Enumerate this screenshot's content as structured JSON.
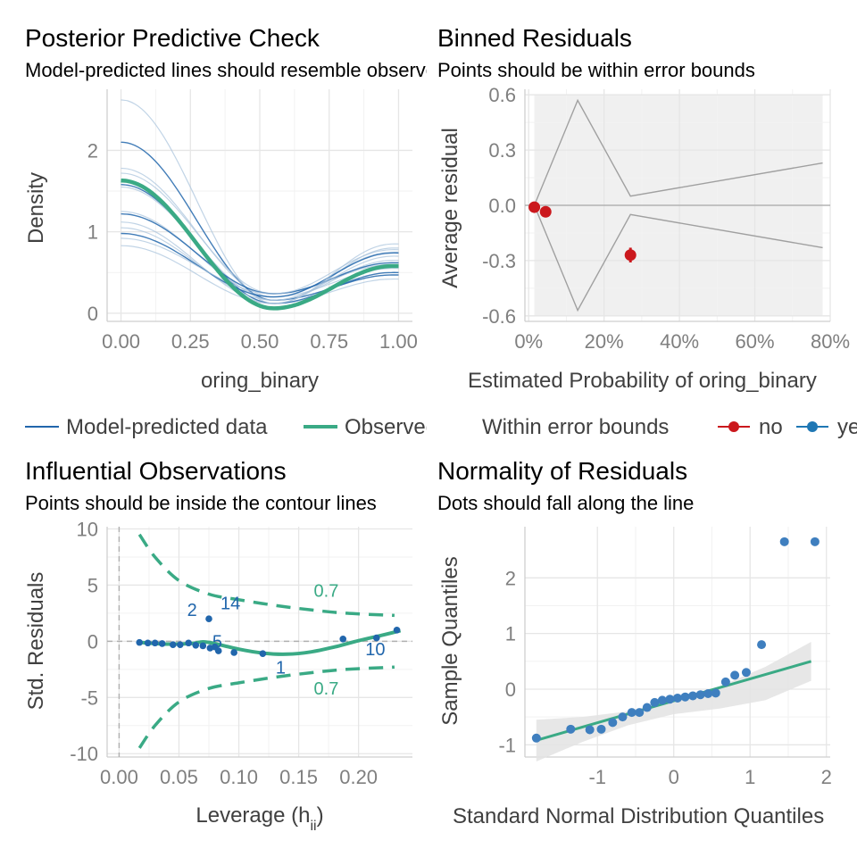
{
  "chart_data": [
    {
      "id": "ppc",
      "type": "line",
      "title": "Posterior Predictive Check",
      "subtitle": "Model-predicted lines should resemble observed data line",
      "xlabel": "oring_binary",
      "ylabel": "Density",
      "xlim": [
        -0.05,
        1.05
      ],
      "ylim": [
        -0.1,
        2.75
      ],
      "xticks": [
        0,
        0.25,
        0.5,
        0.75,
        1
      ],
      "xtick_labels": [
        "0.00",
        "0.25",
        "0.50",
        "0.75",
        "1.00"
      ],
      "yticks": [
        0,
        1,
        2
      ],
      "ytick_labels": [
        "0",
        "1",
        "2"
      ],
      "legend": [
        "Model-predicted data",
        "Observed data"
      ],
      "colors": {
        "model": "#2166ac",
        "model_light": "#a6c2dc",
        "observed": "#3aaa85"
      },
      "series": [
        {
          "name": "Observed data",
          "type": "observed",
          "y0": 1.63,
          "y1": 0.58
        },
        {
          "name": "Model-predicted data",
          "type": "model",
          "y0": 2.62,
          "y1": 0.42
        },
        {
          "name": "Model-predicted data",
          "type": "model",
          "y0": 2.1,
          "y1": 0.47
        },
        {
          "name": "Model-predicted data",
          "type": "model",
          "y0": 1.78,
          "y1": 0.55
        },
        {
          "name": "Model-predicted data",
          "type": "model",
          "y0": 1.72,
          "y1": 0.6
        },
        {
          "name": "Model-predicted data",
          "type": "model",
          "y0": 1.58,
          "y1": 0.5
        },
        {
          "name": "Model-predicted data",
          "type": "model",
          "y0": 1.55,
          "y1": 0.65
        },
        {
          "name": "Model-predicted data",
          "type": "model",
          "y0": 1.25,
          "y1": 0.75
        },
        {
          "name": "Model-predicted data",
          "type": "model",
          "y0": 1.22,
          "y1": 0.62
        },
        {
          "name": "Model-predicted data",
          "type": "model",
          "y0": 1.12,
          "y1": 0.8
        },
        {
          "name": "Model-predicted data",
          "type": "model",
          "y0": 1.05,
          "y1": 0.7
        },
        {
          "name": "Model-predicted data",
          "type": "model",
          "y0": 0.98,
          "y1": 0.74
        },
        {
          "name": "Model-predicted data",
          "type": "model",
          "y0": 0.92,
          "y1": 0.78
        },
        {
          "name": "Model-predicted data",
          "type": "model",
          "y0": 0.83,
          "y1": 0.85
        }
      ]
    },
    {
      "id": "binned",
      "type": "scatter",
      "title": "Binned Residuals",
      "subtitle": "Points should be within error bounds",
      "xlabel": "Estimated Probability of oring_binary",
      "ylabel": "Average residual",
      "xlim": [
        -0.01,
        0.8
      ],
      "ylim": [
        -0.63,
        0.63
      ],
      "xticks": [
        0,
        0.2,
        0.4,
        0.6,
        0.8
      ],
      "xtick_labels": [
        "0%",
        "20%",
        "40%",
        "60%",
        "80%"
      ],
      "yticks": [
        -0.6,
        -0.3,
        0,
        0.3,
        0.6
      ],
      "ytick_labels": [
        "-0.6",
        "-0.3",
        "0.0",
        "0.3",
        "0.6"
      ],
      "legend_title": "Within error bounds",
      "legend": [
        "no",
        "yes"
      ],
      "colors": {
        "no": "#cb181d",
        "yes": "#1f77b4",
        "band": "#f0f0f0",
        "bound": "#a0a0a0"
      },
      "bound_x": [
        0.13,
        0.27,
        0.78
      ],
      "bound_upper": [
        0.57,
        0.05,
        0.23
      ],
      "bound_lower": [
        -0.57,
        -0.05,
        -0.23
      ],
      "band_x": [
        0.015,
        0.78
      ],
      "points": [
        {
          "x": 0.015,
          "y": -0.01,
          "err": 0.02,
          "within": "no"
        },
        {
          "x": 0.045,
          "y": -0.035,
          "err": 0.02,
          "within": "no"
        },
        {
          "x": 0.27,
          "y": -0.27,
          "err": 0.04,
          "within": "no"
        }
      ]
    },
    {
      "id": "influence",
      "type": "scatter",
      "title": "Influential Observations",
      "subtitle": "Points should be inside the contour lines",
      "xlabel": "Leverage (h",
      "xlabel_sub": "ii",
      "xlabel_end": ")",
      "ylabel": "Std. Residuals",
      "xlim": [
        -0.01,
        0.245
      ],
      "ylim": [
        -10.3,
        10.2
      ],
      "xticks": [
        0,
        0.05,
        0.1,
        0.15,
        0.2
      ],
      "xtick_labels": [
        "0.00",
        "0.05",
        "0.10",
        "0.15",
        "0.20"
      ],
      "yticks": [
        -10,
        -5,
        0,
        5,
        10
      ],
      "ytick_labels": [
        "-10",
        "-5",
        "0",
        "5",
        "10"
      ],
      "colors": {
        "point": "#2166ac",
        "contour": "#3aaa85",
        "label": "#2166ac",
        "ref": "#b0b0b0"
      },
      "contour_x": [
        0.017,
        0.03,
        0.05,
        0.075,
        0.1,
        0.13,
        0.16,
        0.19,
        0.23
      ],
      "contour_upper": [
        9.5,
        7.5,
        5.4,
        4.2,
        3.7,
        3.2,
        2.8,
        2.5,
        2.3
      ],
      "contour_label": "0.7",
      "contour_label_pos": [
        {
          "x": 0.173,
          "y": 4.5
        },
        {
          "x": 0.173,
          "y": -4.2
        }
      ],
      "smooth_x": [
        0.017,
        0.04,
        0.06,
        0.07,
        0.08,
        0.1,
        0.12,
        0.14,
        0.16,
        0.18,
        0.2,
        0.22,
        0.235
      ],
      "smooth_y": [
        -0.1,
        -0.25,
        -0.2,
        -0.05,
        -0.2,
        -0.7,
        -1.05,
        -1.15,
        -0.95,
        -0.5,
        0.05,
        0.55,
        0.95
      ],
      "points": [
        {
          "x": 0.017,
          "y": -0.1
        },
        {
          "x": 0.024,
          "y": -0.15
        },
        {
          "x": 0.03,
          "y": -0.15
        },
        {
          "x": 0.036,
          "y": -0.2
        },
        {
          "x": 0.045,
          "y": -0.3
        },
        {
          "x": 0.051,
          "y": -0.3
        },
        {
          "x": 0.058,
          "y": -0.15
        },
        {
          "x": 0.064,
          "y": -0.35
        },
        {
          "x": 0.07,
          "y": -0.4
        },
        {
          "x": 0.075,
          "y": 2.0
        },
        {
          "x": 0.076,
          "y": -0.6
        },
        {
          "x": 0.08,
          "y": -0.5
        },
        {
          "x": 0.083,
          "y": -0.85
        },
        {
          "x": 0.096,
          "y": -1.0
        },
        {
          "x": 0.12,
          "y": -1.1
        },
        {
          "x": 0.187,
          "y": 0.2
        },
        {
          "x": 0.215,
          "y": 0.3
        },
        {
          "x": 0.232,
          "y": 1.0
        }
      ],
      "labels": [
        {
          "text": "2",
          "x": 0.061,
          "y": 2.8
        },
        {
          "text": "14",
          "x": 0.093,
          "y": 3.4
        },
        {
          "text": "5",
          "x": 0.082,
          "y": 0.0
        },
        {
          "text": "1",
          "x": 0.135,
          "y": -2.3
        },
        {
          "text": "10",
          "x": 0.214,
          "y": -0.7
        }
      ]
    },
    {
      "id": "qq",
      "type": "scatter",
      "title": "Normality of Residuals",
      "subtitle": "Dots should fall along the line",
      "xlabel": "Standard Normal Distribution Quantiles",
      "ylabel": "Sample Quantiles",
      "xlim": [
        -1.95,
        2.05
      ],
      "ylim": [
        -1.22,
        2.92
      ],
      "xticks": [
        -1,
        0,
        1,
        2
      ],
      "xtick_labels": [
        "-1",
        "0",
        "1",
        "2"
      ],
      "yticks": [
        -1,
        0,
        1,
        2
      ],
      "ytick_labels": [
        "-1",
        "0",
        "1",
        "2"
      ],
      "colors": {
        "point": "#3f7fbf",
        "line": "#3aaa85",
        "band": "#e3e3e3"
      },
      "line": {
        "x": [
          -1.8,
          1.8
        ],
        "y": [
          -0.92,
          0.5
        ]
      },
      "band_x": [
        -1.8,
        -1.2,
        -0.6,
        0,
        0.6,
        1.2,
        1.8
      ],
      "band_upper": [
        -0.55,
        -0.5,
        -0.4,
        -0.2,
        0.05,
        0.4,
        0.85
      ],
      "band_lower": [
        -1.3,
        -0.95,
        -0.65,
        -0.45,
        -0.35,
        -0.2,
        0.15
      ],
      "points": [
        {
          "x": -1.8,
          "y": -0.88
        },
        {
          "x": -1.35,
          "y": -0.72
        },
        {
          "x": -1.1,
          "y": -0.73
        },
        {
          "x": -0.95,
          "y": -0.72
        },
        {
          "x": -0.8,
          "y": -0.6
        },
        {
          "x": -0.67,
          "y": -0.5
        },
        {
          "x": -0.55,
          "y": -0.42
        },
        {
          "x": -0.45,
          "y": -0.42
        },
        {
          "x": -0.35,
          "y": -0.33
        },
        {
          "x": -0.25,
          "y": -0.24
        },
        {
          "x": -0.15,
          "y": -0.2
        },
        {
          "x": -0.05,
          "y": -0.18
        },
        {
          "x": 0.05,
          "y": -0.16
        },
        {
          "x": 0.15,
          "y": -0.14
        },
        {
          "x": 0.25,
          "y": -0.12
        },
        {
          "x": 0.35,
          "y": -0.1
        },
        {
          "x": 0.45,
          "y": -0.08
        },
        {
          "x": 0.55,
          "y": -0.07
        },
        {
          "x": 0.68,
          "y": 0.13
        },
        {
          "x": 0.8,
          "y": 0.25
        },
        {
          "x": 0.95,
          "y": 0.3
        },
        {
          "x": 1.15,
          "y": 0.8
        },
        {
          "x": 1.45,
          "y": 2.65
        },
        {
          "x": 1.85,
          "y": 2.65
        }
      ]
    }
  ]
}
